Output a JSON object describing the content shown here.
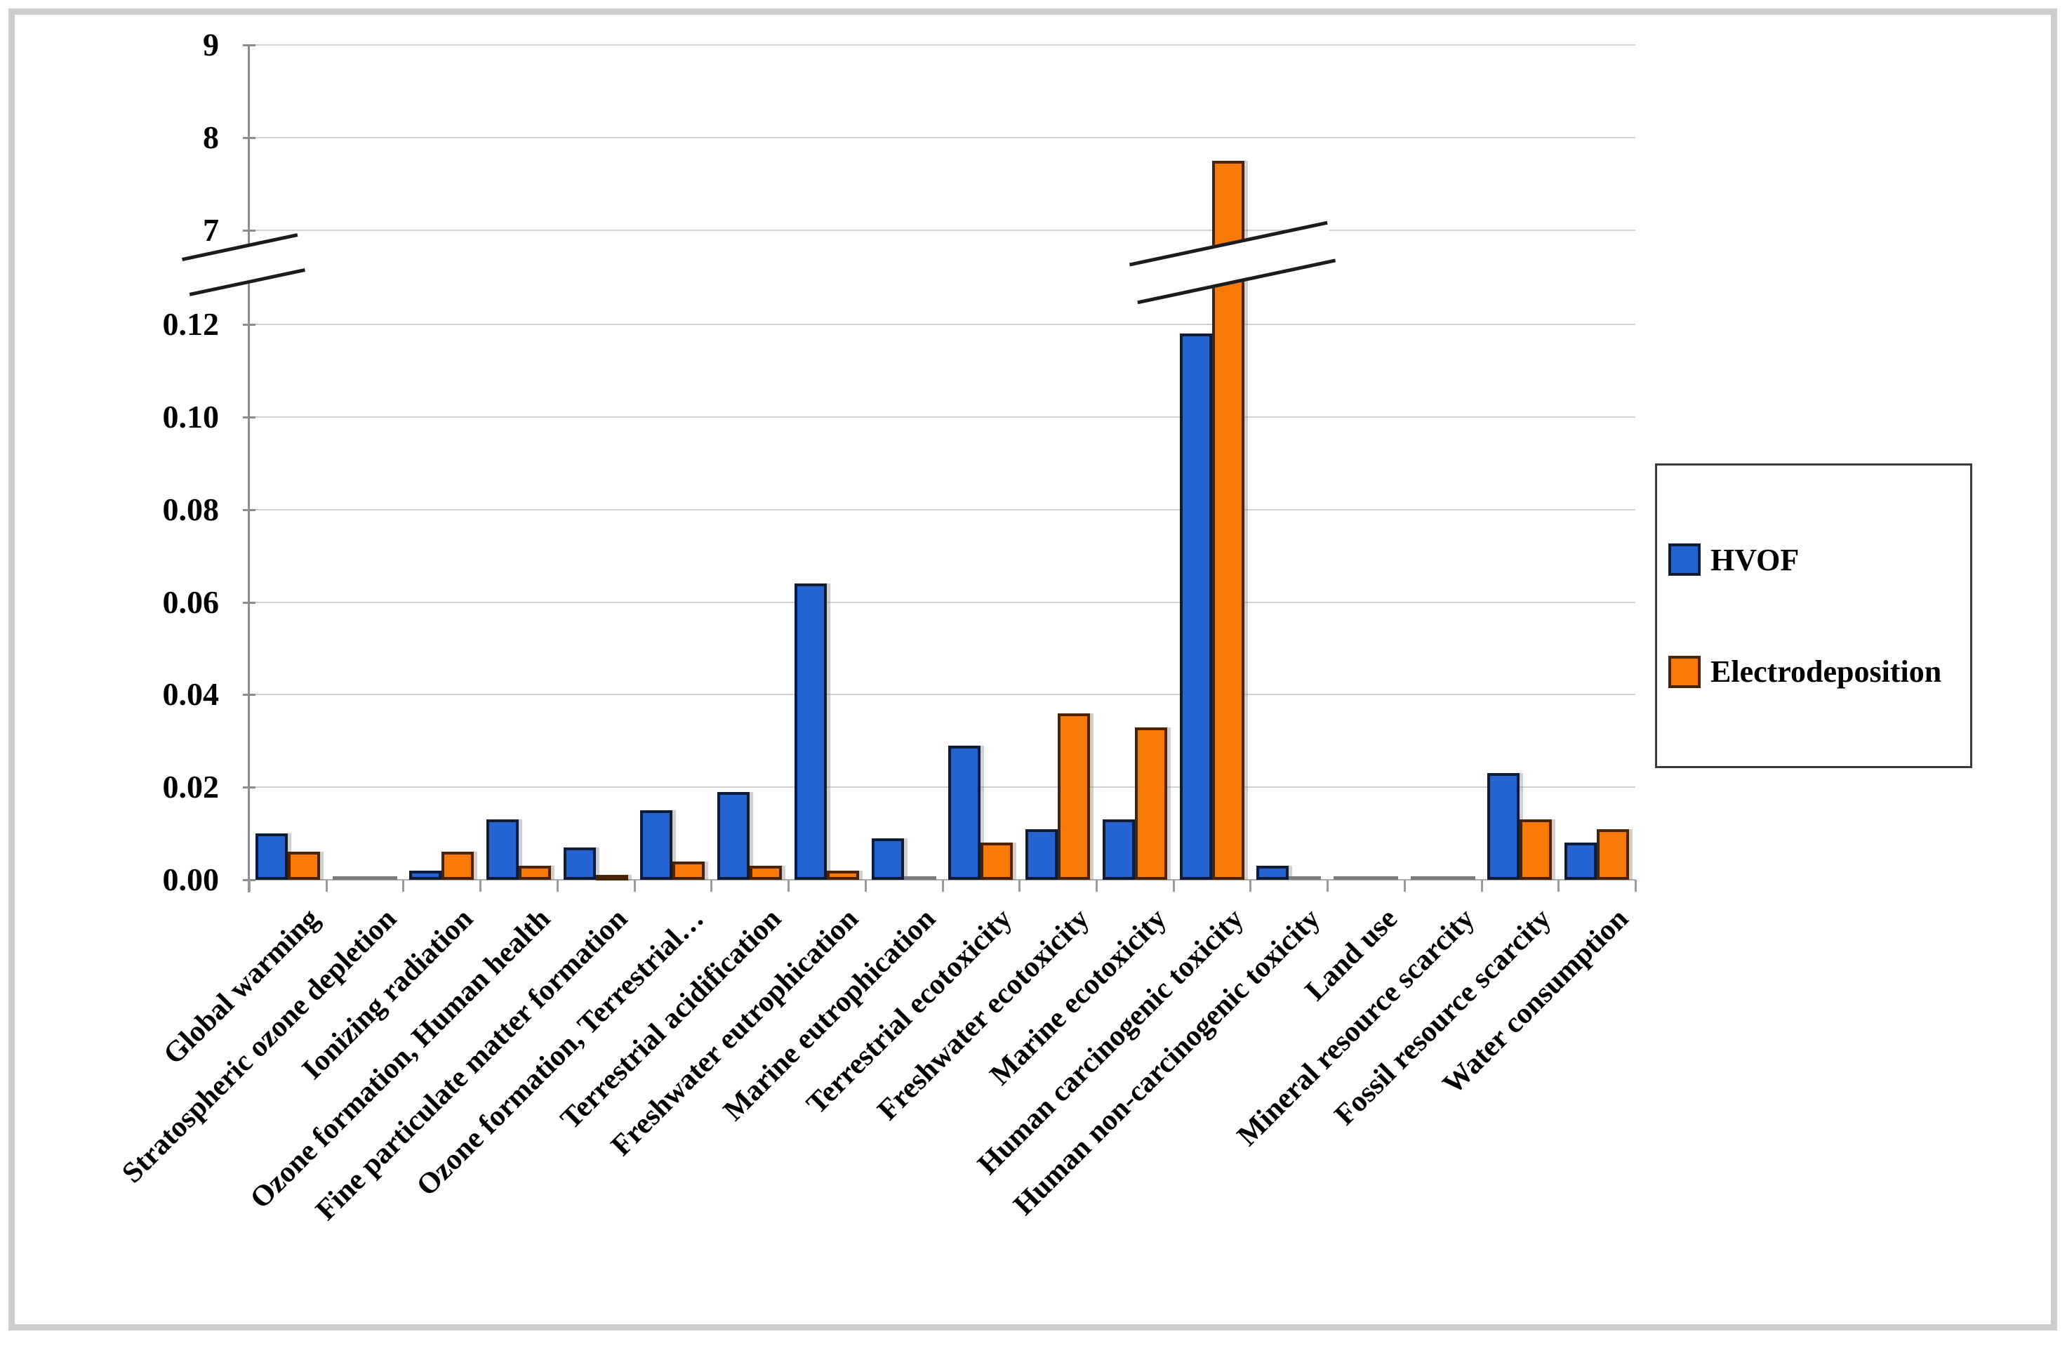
{
  "figure": {
    "background": "#ffffff",
    "frame_border_color": "#cdcdcd",
    "gridline_color": "#d2d2d2",
    "axis_color": "#8c8c8c",
    "zero_bar_color": "#7a7a7a"
  },
  "legend": {
    "position": "right",
    "items": [
      {
        "label": "HVOF",
        "color": "#2363D2",
        "border": "#0f1c38"
      },
      {
        "label": "Electrodeposition",
        "color": "#F87808",
        "border": "#4a2400"
      }
    ]
  },
  "chart_data": {
    "type": "bar",
    "title": "",
    "xlabel": "",
    "ylabel": "",
    "grid": true,
    "legend_position": "right",
    "categories": [
      "Global warming",
      "Stratospheric ozone depletion",
      "Ionizing radiation",
      "Ozone formation, Human health",
      "Fine particulate matter formation",
      "Ozone formation, Terrestrial…",
      "Terrestrial acidification",
      "Freshwater eutrophication",
      "Marine eutrophication",
      "Terrestrial ecotoxicity",
      "Freshwater ecotoxicity",
      "Marine ecotoxicity",
      "Human carcinogenic toxicity",
      "Human non-carcinogenic toxicity",
      "Land use",
      "Mineral resource scarcity",
      "Fossil resource scarcity",
      "Water consumption"
    ],
    "series": [
      {
        "name": "HVOF",
        "color": "#2363D2",
        "border_color": "#0f1c38",
        "values": [
          0.01,
          0,
          0.002,
          0.013,
          0.007,
          0.015,
          0.019,
          0.064,
          0.009,
          0.029,
          0.011,
          0.013,
          0.118,
          0.003,
          0,
          0,
          0.023,
          0.008
        ]
      },
      {
        "name": "Electrodeposition",
        "color": "#F87808",
        "border_color": "#4a2400",
        "values": [
          0.006,
          0,
          0.006,
          0.003,
          0.001,
          0.004,
          0.003,
          0.002,
          0,
          0.008,
          0.036,
          0.033,
          7.75,
          0,
          0,
          0,
          0.013,
          0.011
        ]
      }
    ],
    "y_axis": {
      "broken": true,
      "lower_range": [
        0,
        0.13
      ],
      "upper_range": [
        6.85,
        9
      ],
      "lower_ticks": [
        "0.00",
        "0.02",
        "0.04",
        "0.06",
        "0.08",
        "0.10",
        "0.12"
      ],
      "upper_ticks": [
        "7",
        "8",
        "9"
      ],
      "break_symbol": "double diagonal slash on axis and on Electrodeposition bar of Human carcinogenic toxicity"
    }
  }
}
